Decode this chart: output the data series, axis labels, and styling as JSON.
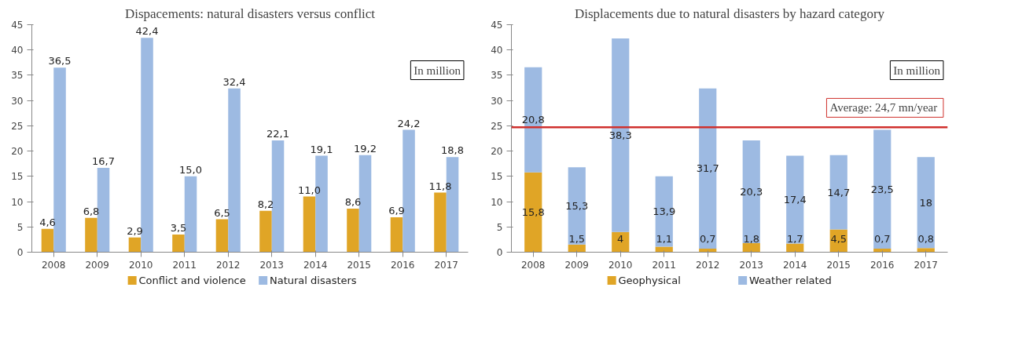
{
  "chart_data": [
    {
      "type": "bar",
      "title": "Dispacements: natural disasters versus conflict",
      "categories": [
        "2008",
        "2009",
        "2010",
        "2011",
        "2012",
        "2013",
        "2014",
        "2015",
        "2016",
        "2017"
      ],
      "series": [
        {
          "name": "Conflict and violence",
          "color": "#e0a526",
          "values": [
            4.6,
            6.8,
            2.9,
            3.5,
            6.5,
            8.2,
            11.0,
            8.6,
            6.9,
            11.8
          ],
          "value_labels": [
            "4,6",
            "6,8",
            "2,9",
            "3,5",
            "6,5",
            "8,2",
            "11,0",
            "8,6",
            "6,9",
            "11,8"
          ]
        },
        {
          "name": "Natural disasters",
          "color": "#9dbae2",
          "values": [
            36.5,
            16.7,
            42.4,
            15.0,
            32.4,
            22.1,
            19.1,
            19.2,
            24.2,
            18.8
          ],
          "value_labels": [
            "36,5",
            "16,7",
            "42,4",
            "15,0",
            "32,4",
            "22,1",
            "19,1",
            "19,2",
            "24,2",
            "18,8"
          ]
        }
      ],
      "ylim": [
        0,
        45
      ],
      "yticks": [
        0,
        5,
        10,
        15,
        20,
        25,
        30,
        35,
        40,
        45
      ],
      "grid": false,
      "legend": "bottom",
      "annotations": [
        "In million"
      ]
    },
    {
      "type": "bar",
      "title": "Displacements due to natural disasters by hazard category",
      "stacked": true,
      "categories": [
        "2008",
        "2009",
        "2010",
        "2011",
        "2012",
        "2013",
        "2014",
        "2015",
        "2016",
        "2017"
      ],
      "series": [
        {
          "name": "Geophysical",
          "color": "#e0a526",
          "values": [
            15.8,
            1.5,
            4,
            1.1,
            0.7,
            1.8,
            1.7,
            4.5,
            0.7,
            0.8
          ],
          "value_labels": [
            "15,8",
            "1,5",
            "4",
            "1,1",
            "0,7",
            "1,8",
            "1,7",
            "4,5",
            "0,7",
            "0,8"
          ]
        },
        {
          "name": "Weather related",
          "color": "#9dbae2",
          "values": [
            20.8,
            15.3,
            38.3,
            13.9,
            31.7,
            20.3,
            17.4,
            14.7,
            23.5,
            18
          ],
          "value_labels": [
            "20,8",
            "15,3",
            "38,3",
            "13,9",
            "31,7",
            "20,3",
            "17,4",
            "14,7",
            "23,5",
            "18"
          ]
        }
      ],
      "ylim": [
        0,
        45
      ],
      "yticks": [
        0,
        5,
        10,
        15,
        20,
        25,
        30,
        35,
        40,
        45
      ],
      "grid": false,
      "legend": "bottom",
      "annotations": [
        "In million"
      ],
      "ref_lines": [
        {
          "axis": "y",
          "value": 24.7,
          "label": "Average:  24,7 mn/year",
          "color": "#d0312d"
        }
      ]
    }
  ]
}
